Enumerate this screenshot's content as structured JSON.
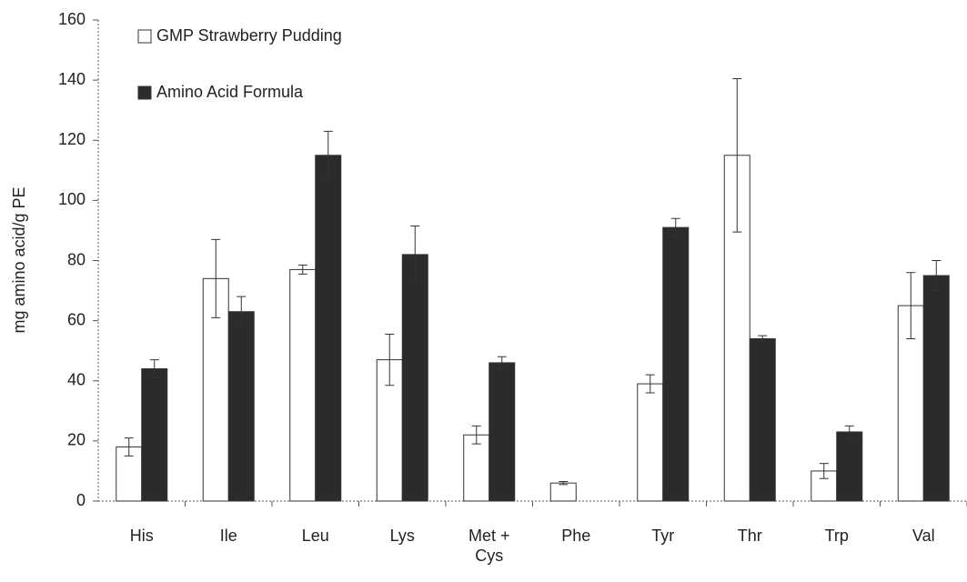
{
  "chart_data": {
    "type": "bar",
    "y_label": "mg amino acid/g PE",
    "categories": [
      "His",
      "Ile",
      "Leu",
      "Lys",
      "Met + Cys",
      "Phe",
      "Tyr",
      "Thr",
      "Trp",
      "Val"
    ],
    "series": [
      {
        "name": "GMP Strawberry Pudding",
        "color": "#ffffff",
        "values": [
          18,
          74,
          77,
          47,
          22,
          6,
          39,
          115,
          10,
          65
        ],
        "errors": [
          3,
          13,
          1.5,
          8.5,
          3,
          0.5,
          3,
          25.5,
          2.5,
          11
        ]
      },
      {
        "name": "Amino Acid Formula",
        "color": "#2b2b2b",
        "values": [
          44,
          63,
          115,
          82,
          46,
          0,
          91,
          54,
          23,
          75
        ],
        "errors": [
          3,
          5,
          8,
          9.5,
          2,
          0,
          3,
          1,
          2,
          5
        ]
      }
    ],
    "ylim": [
      0,
      160
    ],
    "yticks": [
      0,
      20,
      40,
      60,
      80,
      100,
      120,
      140,
      160
    ]
  }
}
